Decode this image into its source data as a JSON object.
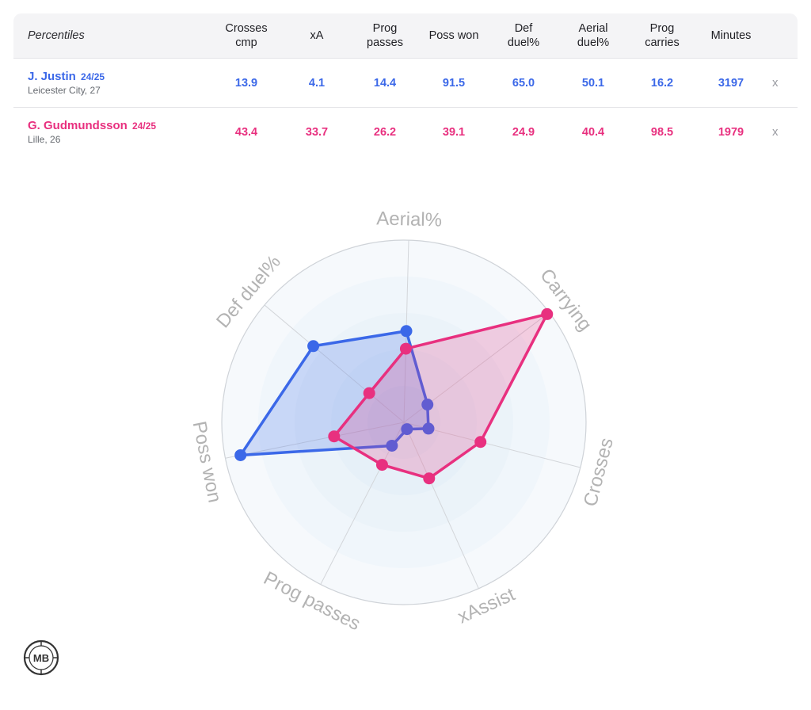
{
  "table": {
    "header_label": "Percentiles",
    "columns": [
      {
        "line1": "Crosses",
        "line2": "cmp"
      },
      {
        "line1": "xA",
        "line2": ""
      },
      {
        "line1": "Prog",
        "line2": "passes"
      },
      {
        "line1": "Poss won",
        "line2": ""
      },
      {
        "line1": "Def",
        "line2": "duel%"
      },
      {
        "line1": "Aerial",
        "line2": "duel%"
      },
      {
        "line1": "Prog",
        "line2": "carries"
      },
      {
        "line1": "Minutes",
        "line2": ""
      }
    ],
    "remove_label": "x",
    "players": [
      {
        "name": "J. Justin",
        "season": "24/25",
        "info": "Leicester City, 27",
        "color": "#3b68e8",
        "values": [
          "13.9",
          "4.1",
          "14.4",
          "91.5",
          "65.0",
          "50.1",
          "16.2",
          "3197"
        ]
      },
      {
        "name": "G. Gudmundsson",
        "season": "24/25",
        "info": "Lille, 26",
        "color": "#e8307f",
        "values": [
          "43.4",
          "33.7",
          "26.2",
          "39.1",
          "24.9",
          "40.4",
          "98.5",
          "1979"
        ]
      }
    ]
  },
  "chart_data": {
    "type": "radar",
    "range": [
      0,
      100
    ],
    "axes": [
      "Aerial%",
      "Carrying",
      "Crosses",
      "xAssist",
      "Prog passes",
      "Poss won",
      "Def duel%"
    ],
    "series": [
      {
        "name": "J. Justin",
        "color": "#3b68e8",
        "values": [
          50.1,
          16.2,
          13.9,
          4.1,
          14.4,
          91.5,
          65.0
        ]
      },
      {
        "name": "G. Gudmundsson",
        "color": "#e8307f",
        "values": [
          40.4,
          98.5,
          43.4,
          33.7,
          26.2,
          39.1,
          24.9
        ]
      }
    ]
  },
  "logo": {
    "text": "MB"
  }
}
